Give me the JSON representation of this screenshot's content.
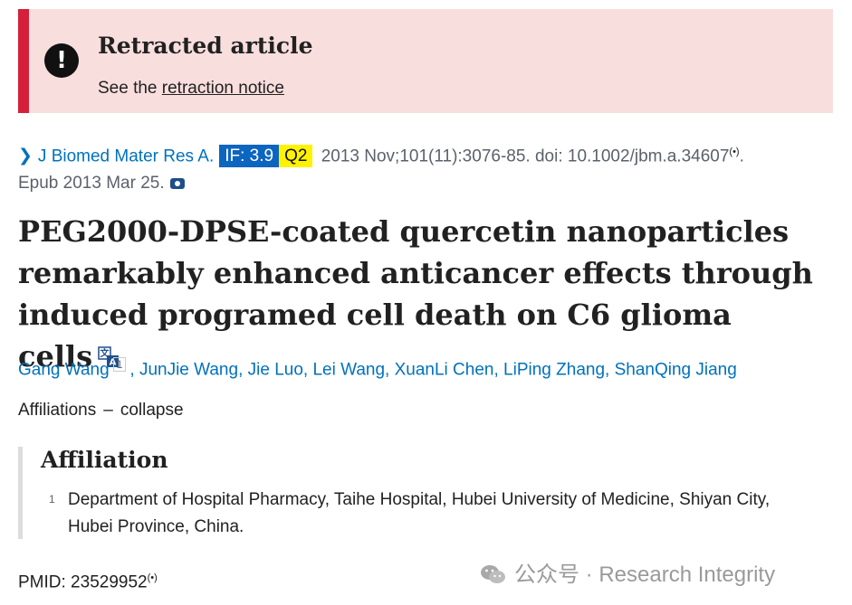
{
  "banner": {
    "title": "Retracted article",
    "sub_prefix": "See the ",
    "link": "retraction notice",
    "icon": "exclamation-icon"
  },
  "citation": {
    "journal": "J Biomed Mater Res A.",
    "impact_factor": "IF: 3.9",
    "quartile": "Q2",
    "details": " 2013 Nov;101(11):3076-85. doi: 10.1002/jbm.a.34607",
    "suffix": ".",
    "epub": "Epub 2013 Mar 25."
  },
  "title": "PEG2000-DPSE-coated quercetin nanoparticles remarkably enhanced anticancer effects through induced programed cell death on C6 glioma cells",
  "authors": [
    {
      "name": "Gang Wang",
      "sup": "1"
    },
    {
      "name": "JunJie Wang"
    },
    {
      "name": "Jie Luo"
    },
    {
      "name": "Lei Wang"
    },
    {
      "name": "XuanLi Chen"
    },
    {
      "name": "LiPing Zhang"
    },
    {
      "name": "ShanQing Jiang"
    }
  ],
  "affiliations_toggle": {
    "label": "Affiliations",
    "dash": "–",
    "action": "collapse"
  },
  "affiliation": {
    "heading": "Affiliation",
    "number": "1",
    "text": "Department of Hospital Pharmacy, Taihe Hospital, Hubei University of Medicine, Shiyan City, Hubei Province, China."
  },
  "pmid": "PMID: 23529952",
  "watermark": "公众号 · Research Integrity",
  "colors": {
    "banner_bg": "#f9dede",
    "banner_accent": "#d61f3a",
    "link": "#0071bc",
    "if_badge": "#0c65bf",
    "q_badge": "#fff200"
  }
}
